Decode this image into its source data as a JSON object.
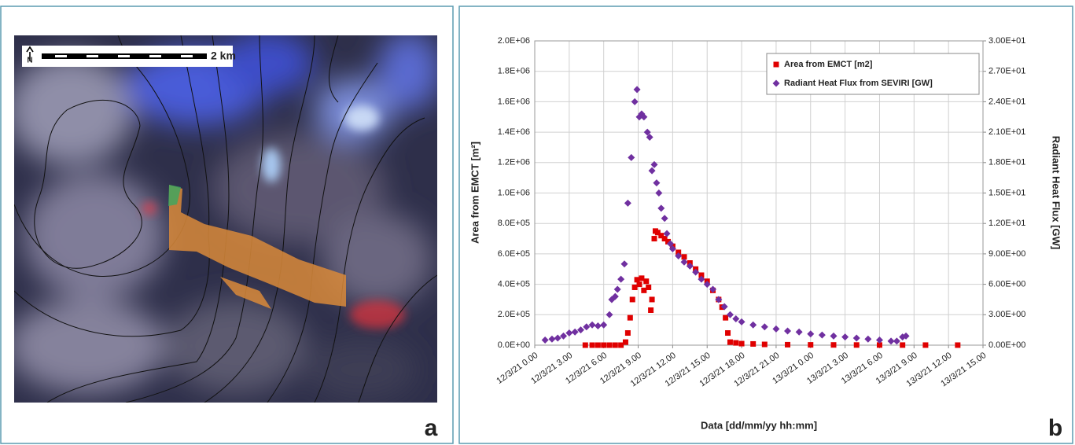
{
  "map_panel": {
    "north_label": "N",
    "scale_label": "2 km",
    "panel_label": "a"
  },
  "chart_panel_label": "b",
  "chart_data": {
    "type": "scatter",
    "x_label": "Data [dd/mm/yy hh:mm]",
    "y_label": "Area from EMCT [m²]",
    "y2_label": "Radiant Heat Flux [GW]",
    "xlim": [
      0,
      39
    ],
    "xticks": [
      {
        "value": 0,
        "label": "12/3/21 0.00"
      },
      {
        "value": 3,
        "label": "12/3/21 3.00"
      },
      {
        "value": 6,
        "label": "12/3/21 6.00"
      },
      {
        "value": 9,
        "label": "12/3/21 9.00"
      },
      {
        "value": 12,
        "label": "12/3/21 12.00"
      },
      {
        "value": 15,
        "label": "12/3/21 15.00"
      },
      {
        "value": 18,
        "label": "12/3/21 18.00"
      },
      {
        "value": 21,
        "label": "12/3/21 21.00"
      },
      {
        "value": 24,
        "label": "13/3/21 0.00"
      },
      {
        "value": 27,
        "label": "13/3/21 3.00"
      },
      {
        "value": 30,
        "label": "13/3/21 6.00"
      },
      {
        "value": 33,
        "label": "13/3/21 9.00"
      },
      {
        "value": 36,
        "label": "13/3/21 12.00"
      },
      {
        "value": 39,
        "label": "13/3/21 15.00"
      }
    ],
    "ylim": [
      0,
      2000000
    ],
    "yticks": [
      {
        "value": 0,
        "label": "0.0E+00"
      },
      {
        "value": 200000,
        "label": "2.0E+05"
      },
      {
        "value": 400000,
        "label": "4.0E+05"
      },
      {
        "value": 600000,
        "label": "6.0E+05"
      },
      {
        "value": 800000,
        "label": "8.0E+05"
      },
      {
        "value": 1000000,
        "label": "1.0E+06"
      },
      {
        "value": 1200000,
        "label": "1.2E+06"
      },
      {
        "value": 1400000,
        "label": "1.4E+06"
      },
      {
        "value": 1600000,
        "label": "1.6E+06"
      },
      {
        "value": 1800000,
        "label": "1.8E+06"
      },
      {
        "value": 2000000,
        "label": "2.0E+06"
      }
    ],
    "y2lim": [
      0,
      30
    ],
    "y2ticks": [
      {
        "value": 0,
        "label": "0.00E+00"
      },
      {
        "value": 3,
        "label": "3.00E+00"
      },
      {
        "value": 6,
        "label": "6.00E+00"
      },
      {
        "value": 9,
        "label": "9.00E+00"
      },
      {
        "value": 12,
        "label": "1.20E+01"
      },
      {
        "value": 15,
        "label": "1.50E+01"
      },
      {
        "value": 18,
        "label": "1.80E+01"
      },
      {
        "value": 21,
        "label": "2.10E+01"
      },
      {
        "value": 24,
        "label": "2.40E+01"
      },
      {
        "value": 27,
        "label": "2.70E+01"
      },
      {
        "value": 30,
        "label": "3.00E+01"
      }
    ],
    "grid": true,
    "legend_loc": "upper right",
    "series": [
      {
        "name": "Area from EMCT [m2]",
        "color": "#e00000",
        "marker": "square",
        "x": [
          4.4,
          5,
          5.5,
          6,
          6.5,
          7,
          7.5,
          7.9,
          8.1,
          8.3,
          8.5,
          8.7,
          8.9,
          9.1,
          9.3,
          9.5,
          9.7,
          9.9,
          10.1,
          10.2,
          10.4,
          10.5,
          10.7,
          11,
          11.3,
          11.6,
          12,
          12.5,
          13,
          13.5,
          14,
          14.5,
          15,
          15.5,
          16,
          16.3,
          16.6,
          16.8,
          17,
          17.5,
          18,
          19,
          20,
          22,
          24,
          26,
          28,
          30,
          32,
          34,
          36.8
        ],
        "values": [
          0,
          0,
          0,
          0,
          0,
          0,
          0,
          20000,
          80000,
          180000,
          300000,
          380000,
          430000,
          400000,
          440000,
          360000,
          420000,
          380000,
          230000,
          300000,
          700000,
          750000,
          740000,
          720000,
          700000,
          680000,
          650000,
          610000,
          580000,
          540000,
          500000,
          460000,
          420000,
          360000,
          300000,
          250000,
          180000,
          80000,
          20000,
          15000,
          10000,
          8000,
          5000,
          3000,
          2000,
          1500,
          1000,
          800,
          500,
          300,
          200
        ]
      },
      {
        "name": "Radiant Heat Flux from SEVIRI [GW]",
        "color": "#7030a0",
        "marker": "diamond",
        "axis": "y2",
        "x": [
          0.9,
          1.5,
          2,
          2.5,
          3,
          3.5,
          4,
          4.5,
          5,
          5.5,
          6,
          6.5,
          6.7,
          7,
          7.2,
          7.5,
          7.8,
          8.1,
          8.4,
          8.7,
          8.9,
          9.1,
          9.3,
          9.5,
          9.8,
          10,
          10.2,
          10.4,
          10.6,
          10.8,
          11,
          11.3,
          11.5,
          11.8,
          12,
          12.5,
          13,
          13.5,
          14,
          14.5,
          15,
          15.5,
          16,
          16.5,
          17,
          17.5,
          18,
          19,
          20,
          21,
          22,
          23,
          24,
          25,
          26,
          27,
          28,
          29,
          30,
          31,
          31.5,
          32,
          32.3
        ],
        "values": [
          0.5,
          0.6,
          0.7,
          0.9,
          1.2,
          1.3,
          1.5,
          1.8,
          2,
          1.9,
          2,
          3,
          4.5,
          4.8,
          5.5,
          6.5,
          8,
          14,
          18.5,
          24,
          25.2,
          22.5,
          22.8,
          22.5,
          21,
          20.5,
          17.2,
          17.8,
          16,
          15,
          13.5,
          12.5,
          11,
          10,
          9.5,
          8.8,
          8.2,
          7.8,
          7.2,
          6.5,
          6,
          5.5,
          4.5,
          3.8,
          3,
          2.6,
          2.3,
          2,
          1.8,
          1.6,
          1.4,
          1.3,
          1.1,
          1,
          0.9,
          0.8,
          0.7,
          0.6,
          0.5,
          0.4,
          0.4,
          0.8,
          0.9
        ]
      }
    ]
  }
}
